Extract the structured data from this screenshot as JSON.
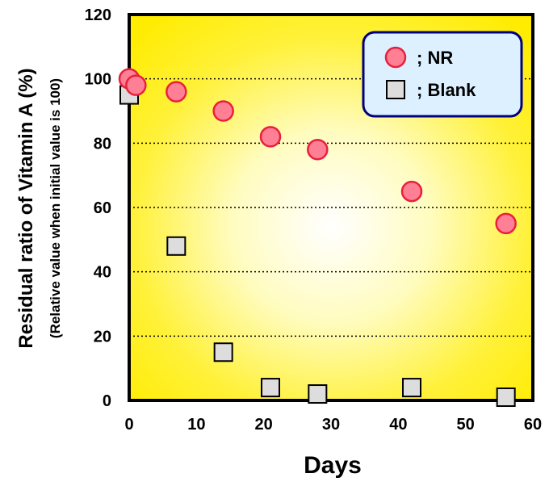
{
  "chart_data": {
    "type": "scatter",
    "xlabel": "Days",
    "ylabel": "Residual ratio of Vitamin A (%)",
    "ylabel_sub": "(Relative value when initial value is 100)",
    "xlim": [
      0,
      60
    ],
    "ylim": [
      0,
      120
    ],
    "x_ticks": [
      "0",
      "10",
      "20",
      "30",
      "40",
      "50",
      "60"
    ],
    "y_ticks": [
      "0",
      "20",
      "40",
      "60",
      "80",
      "100",
      "120"
    ],
    "grid": "horizontal dotted",
    "legend_position": "top-right",
    "series": [
      {
        "name": "; NR",
        "marker": "circle",
        "color": "#ff7f95",
        "x": [
          0,
          1,
          7,
          14,
          21,
          28,
          42,
          56
        ],
        "y": [
          100,
          98,
          96,
          90,
          82,
          78,
          65,
          55
        ]
      },
      {
        "name": "; Blank",
        "marker": "square",
        "color": "#dddddd",
        "x": [
          0,
          7,
          14,
          21,
          28,
          42,
          56
        ],
        "y": [
          95,
          48,
          15,
          4,
          2,
          4,
          1
        ]
      }
    ]
  }
}
